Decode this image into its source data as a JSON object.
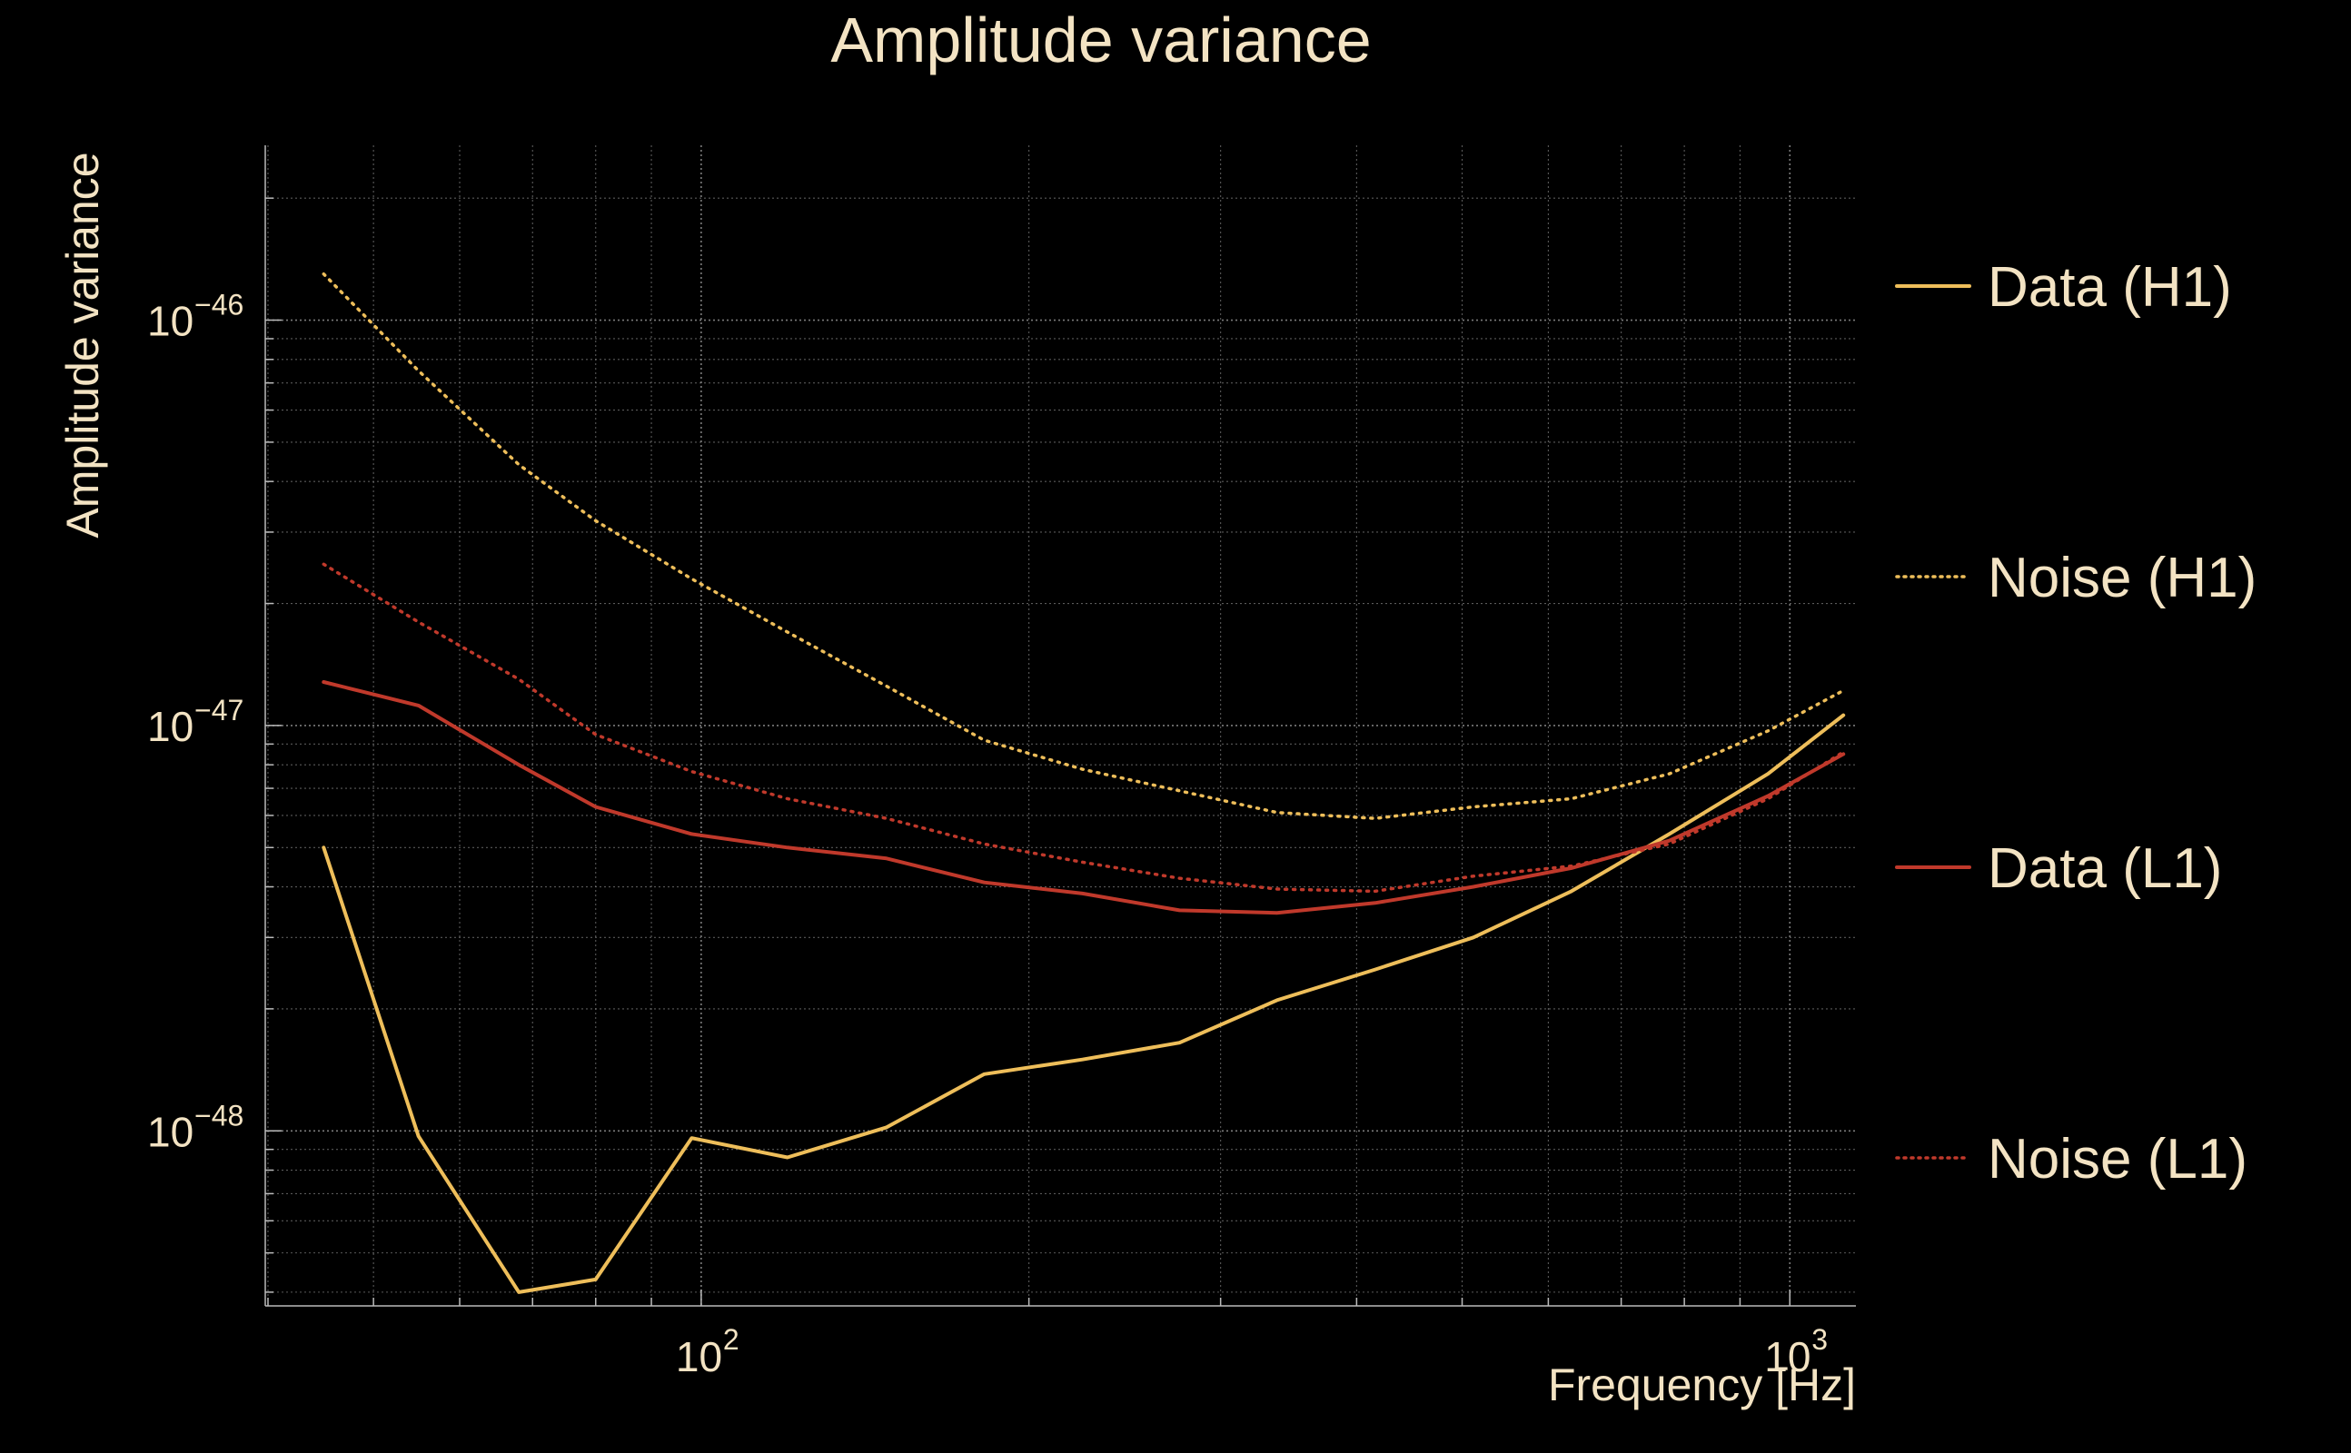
{
  "chart_data": {
    "type": "line",
    "title": "Amplitude variance",
    "xlabel": "Frequency [Hz]",
    "ylabel": "Amplitude variance",
    "xscale": "log",
    "yscale": "log",
    "xlim": [
      40,
      1150
    ],
    "ylim": [
      3.7e-49,
      2.7e-46
    ],
    "grid": true,
    "legend_position": "right",
    "xticks": [
      {
        "base": "10",
        "exp": "2",
        "value": 100
      },
      {
        "base": "10",
        "exp": "3",
        "value": 1000
      }
    ],
    "yticks": [
      {
        "base": "10",
        "exp": "−48",
        "value": 1e-48
      },
      {
        "base": "10",
        "exp": "−47",
        "value": 1e-47
      },
      {
        "base": "10",
        "exp": "−46",
        "value": 1e-46
      }
    ],
    "colors": {
      "background": "#000000",
      "text": "#f3e3c3",
      "grid": "#8a8a8a",
      "h1": "#eebe5a",
      "l1": "#c0392b"
    },
    "series": [
      {
        "name": "Data (H1)",
        "style": "solid",
        "color": "#eebe5a",
        "x": [
          45,
          55,
          68,
          80,
          98,
          120,
          148,
          182,
          224,
          275,
          338,
          416,
          512,
          630,
          775,
          955,
          1120
        ],
        "y": [
          5e-48,
          9.7e-49,
          4e-49,
          4.3e-49,
          9.6e-49,
          8.6e-49,
          1.02e-48,
          1.38e-48,
          1.5e-48,
          1.65e-48,
          2.1e-48,
          2.5e-48,
          3e-48,
          3.9e-48,
          5.4e-48,
          7.6e-48,
          1.06e-47
        ]
      },
      {
        "name": "Noise (H1)",
        "style": "dotted",
        "color": "#eebe5a",
        "x": [
          45,
          55,
          68,
          80,
          98,
          120,
          148,
          182,
          224,
          275,
          338,
          416,
          512,
          630,
          775,
          955,
          1120
        ],
        "y": [
          1.3e-46,
          7.5e-47,
          4.4e-47,
          3.2e-47,
          2.3e-47,
          1.7e-47,
          1.25e-47,
          9.2e-48,
          7.8e-48,
          6.9e-48,
          6.1e-48,
          5.9e-48,
          6.3e-48,
          6.6e-48,
          7.6e-48,
          9.7e-48,
          1.22e-47
        ]
      },
      {
        "name": "Data (L1)",
        "style": "solid",
        "color": "#c0392b",
        "x": [
          45,
          55,
          68,
          80,
          98,
          120,
          148,
          182,
          224,
          275,
          338,
          416,
          512,
          630,
          775,
          955,
          1120
        ],
        "y": [
          1.28e-47,
          1.12e-47,
          8e-48,
          6.3e-48,
          5.4e-48,
          5e-48,
          4.7e-48,
          4.1e-48,
          3.85e-48,
          3.5e-48,
          3.45e-48,
          3.65e-48,
          4e-48,
          4.45e-48,
          5.2e-48,
          6.7e-48,
          8.5e-48
        ]
      },
      {
        "name": "Noise (L1)",
        "style": "dotted",
        "color": "#c0392b",
        "x": [
          45,
          55,
          68,
          80,
          98,
          120,
          148,
          182,
          224,
          275,
          338,
          416,
          512,
          630,
          775,
          955,
          1120
        ],
        "y": [
          2.5e-47,
          1.8e-47,
          1.3e-47,
          9.5e-48,
          7.7e-48,
          6.6e-48,
          5.9e-48,
          5.1e-48,
          4.6e-48,
          4.2e-48,
          3.95e-48,
          3.9e-48,
          4.25e-48,
          4.5e-48,
          5.1e-48,
          6.6e-48,
          8.6e-48
        ]
      }
    ]
  }
}
